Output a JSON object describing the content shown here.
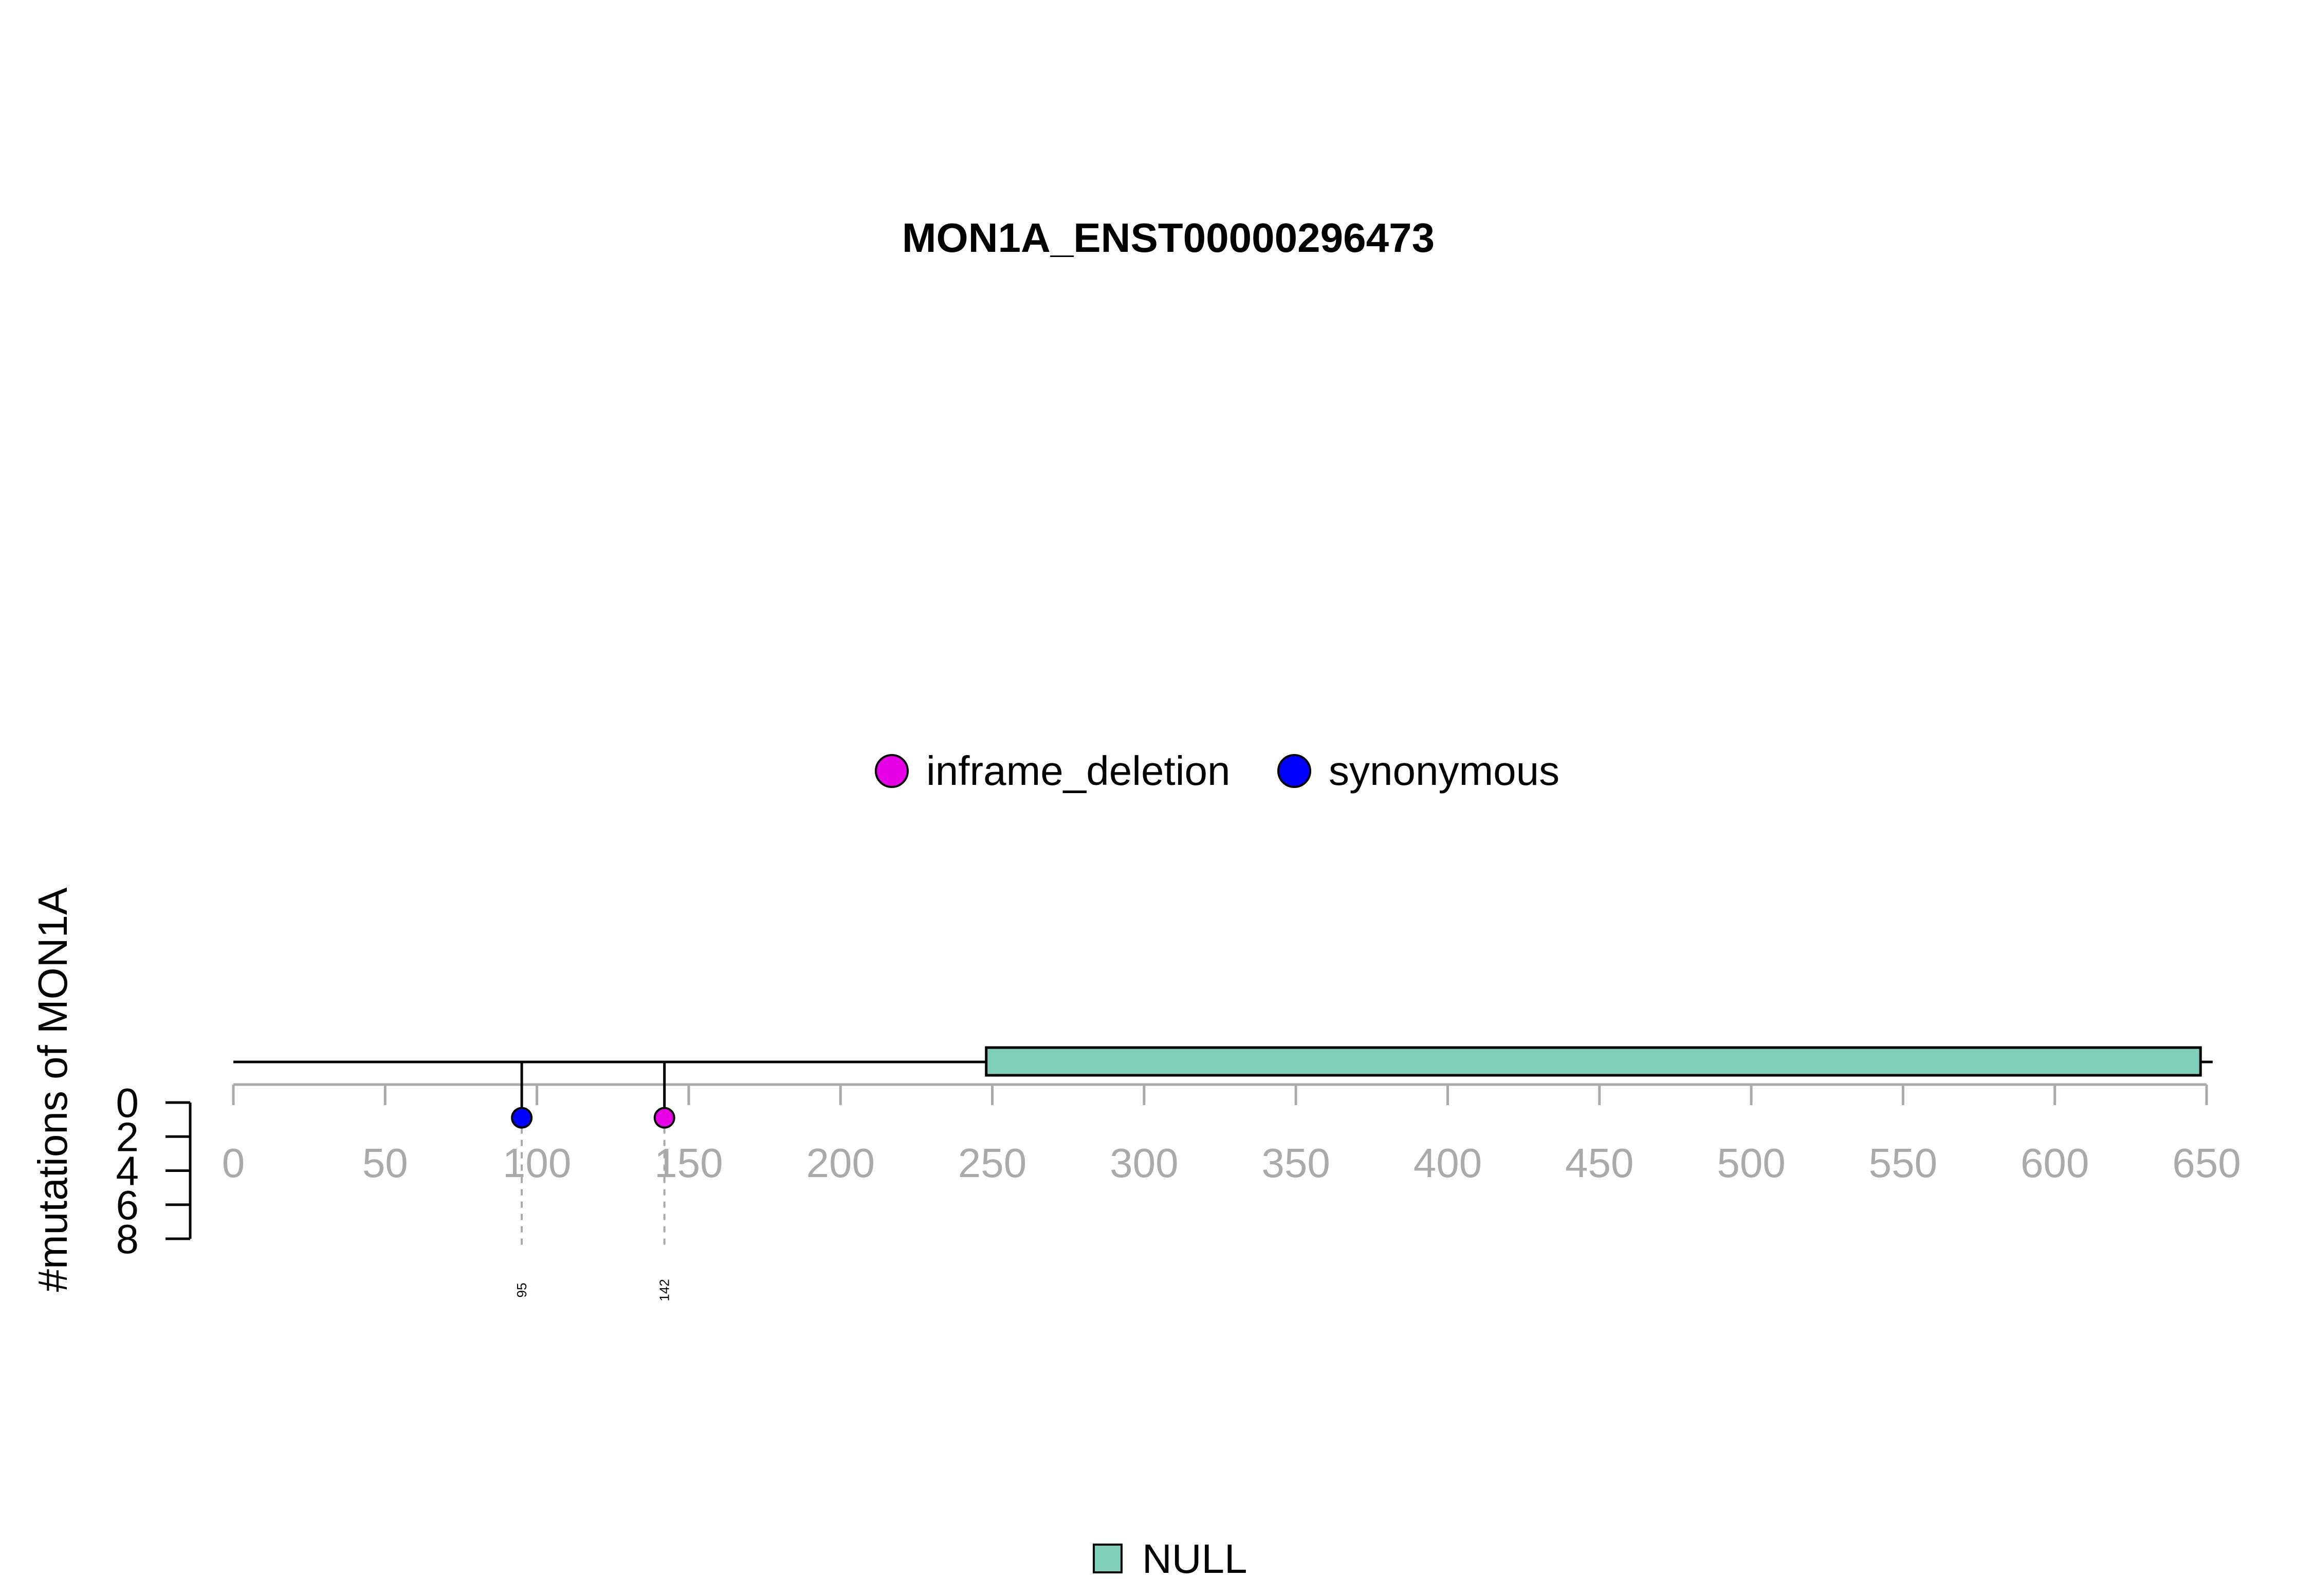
{
  "colors": {
    "inframe_deletion": "#E600E6",
    "synonymous": "#0000FF",
    "domain_fill": "#7FCDBB",
    "axis_gray": "#AAAAAA",
    "ink": "#000000"
  },
  "chart_data": {
    "type": "lollipop",
    "title": "MON1A_ENST00000296473",
    "ylabel": "#mutations of MON1A",
    "x_range": [
      0,
      650
    ],
    "protein_length": 652,
    "x_ticks": [
      0,
      50,
      100,
      150,
      200,
      250,
      300,
      350,
      400,
      450,
      500,
      550,
      600,
      650
    ],
    "y_ticks": [
      0,
      2,
      4,
      6,
      8
    ],
    "y_range": [
      0,
      8
    ],
    "legend_top": [
      {
        "label": "inframe_deletion",
        "color_key": "inframe_deletion"
      },
      {
        "label": "synonymous",
        "color_key": "synonymous"
      }
    ],
    "mutations": [
      {
        "position": 95,
        "count": 1,
        "type": "synonymous",
        "label": "95"
      },
      {
        "position": 142,
        "count": 1,
        "type": "inframe_deletion",
        "label": "142"
      }
    ],
    "domains": [
      {
        "name": "NULL",
        "start": 248,
        "end": 648
      }
    ],
    "legend_bottom": [
      {
        "label": "NULL"
      }
    ]
  }
}
